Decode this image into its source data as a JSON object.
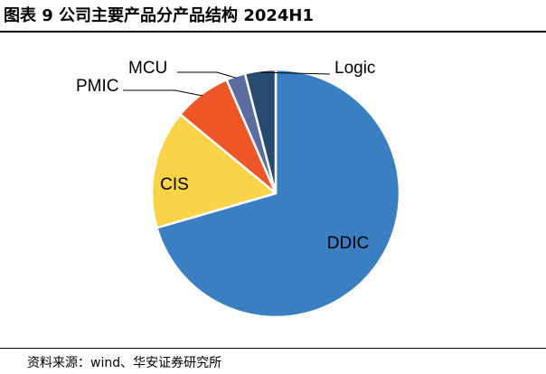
{
  "figure": {
    "title": "图表 9 公司主要产品分产品结构 2024H1",
    "source": "资料来源：wind、华安证券研究所"
  },
  "chart_data": {
    "type": "pie",
    "title": "图表 9 公司主要产品分产品结构 2024H1",
    "unit": "%",
    "slices": [
      {
        "label": "DDIC",
        "value": 70.5,
        "color": "#3A7FC1"
      },
      {
        "label": "CIS",
        "value": 15.5,
        "color": "#F9D448"
      },
      {
        "label": "PMIC",
        "value": 7.5,
        "color": "#EE5628"
      },
      {
        "label": "MCU",
        "value": 2.5,
        "color": "#5B6C9E"
      },
      {
        "label": "Logic",
        "value": 4.0,
        "color": "#274C6F"
      }
    ]
  }
}
